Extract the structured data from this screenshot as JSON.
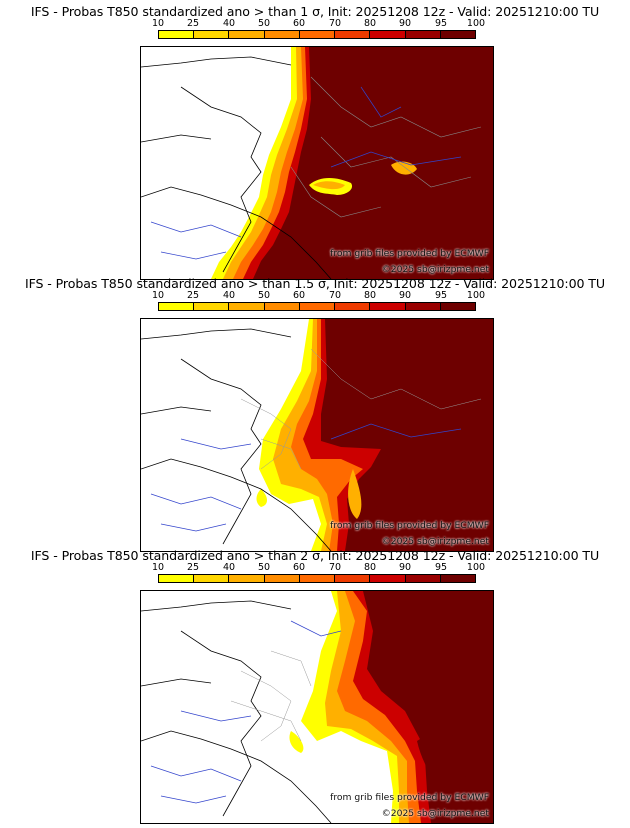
{
  "colorbar": {
    "ticks": [
      "10",
      "25",
      "40",
      "50",
      "60",
      "70",
      "80",
      "90",
      "95",
      "100"
    ],
    "colors": [
      "#ffff00",
      "#ffd700",
      "#ffb000",
      "#ff8c00",
      "#ff6a00",
      "#ee3b00",
      "#cc0000",
      "#990000",
      "#6e0000"
    ]
  },
  "panels": [
    {
      "title": "IFS - Probas T850  standardized ano > than 1 σ, Init: 20251208 12z - Valid: 20251210:00 TU",
      "credit_line1": "from grib files provided by ECMWF",
      "credit_line2": "©2025 sb@irizpme.net"
    },
    {
      "title": "IFS - Probas T850  standardized ano > than 1.5 σ, Init: 20251208 12z - Valid: 20251210:00 TU",
      "credit_line1": "from grib files provided by ECMWF",
      "credit_line2": "©2025 sb@irizpme.net"
    },
    {
      "title": "IFS - Probas T850  standardized ano > than 2 σ, Init: 20251208 12z - Valid: 20251210:00 TU",
      "credit_line1": "from grib files provided by ECMWF",
      "credit_line2": "©2025 sb@irizpme.net"
    }
  ]
}
